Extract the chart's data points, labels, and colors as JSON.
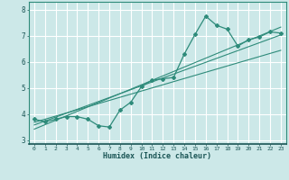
{
  "title": "",
  "xlabel": "Humidex (Indice chaleur)",
  "x_data": [
    0,
    1,
    2,
    3,
    4,
    5,
    6,
    7,
    8,
    9,
    10,
    11,
    12,
    13,
    14,
    15,
    16,
    17,
    18,
    19,
    20,
    21,
    22,
    23
  ],
  "y_main": [
    3.8,
    3.7,
    3.8,
    3.9,
    3.9,
    3.8,
    3.55,
    3.5,
    4.15,
    4.45,
    5.05,
    5.3,
    5.35,
    5.4,
    6.3,
    7.05,
    7.75,
    7.4,
    7.25,
    6.6,
    6.85,
    6.95,
    7.15,
    7.1
  ],
  "y_reg1": [
    3.58,
    3.73,
    3.88,
    4.03,
    4.18,
    4.33,
    4.48,
    4.63,
    4.78,
    4.93,
    5.08,
    5.23,
    5.38,
    5.53,
    5.68,
    5.83,
    5.98,
    6.13,
    6.28,
    6.43,
    6.58,
    6.73,
    6.88,
    7.03
  ],
  "y_reg2": [
    3.42,
    3.59,
    3.76,
    3.93,
    4.1,
    4.27,
    4.44,
    4.61,
    4.78,
    4.95,
    5.12,
    5.29,
    5.46,
    5.63,
    5.8,
    5.97,
    6.14,
    6.31,
    6.48,
    6.65,
    6.82,
    6.99,
    7.16,
    7.33
  ],
  "y_reg3": [
    3.68,
    3.8,
    3.92,
    4.04,
    4.16,
    4.28,
    4.4,
    4.52,
    4.64,
    4.76,
    4.88,
    5.0,
    5.12,
    5.24,
    5.36,
    5.48,
    5.6,
    5.72,
    5.84,
    5.96,
    6.08,
    6.2,
    6.32,
    6.44
  ],
  "line_color": "#2e8b7a",
  "bg_color": "#cce8e8",
  "grid_color": "#ffffff",
  "ylim": [
    2.85,
    8.3
  ],
  "xlim": [
    -0.5,
    23.5
  ],
  "yticks": [
    3,
    4,
    5,
    6,
    7,
    8
  ],
  "xticks": [
    0,
    1,
    2,
    3,
    4,
    5,
    6,
    7,
    8,
    9,
    10,
    11,
    12,
    13,
    14,
    15,
    16,
    17,
    18,
    19,
    20,
    21,
    22,
    23
  ]
}
